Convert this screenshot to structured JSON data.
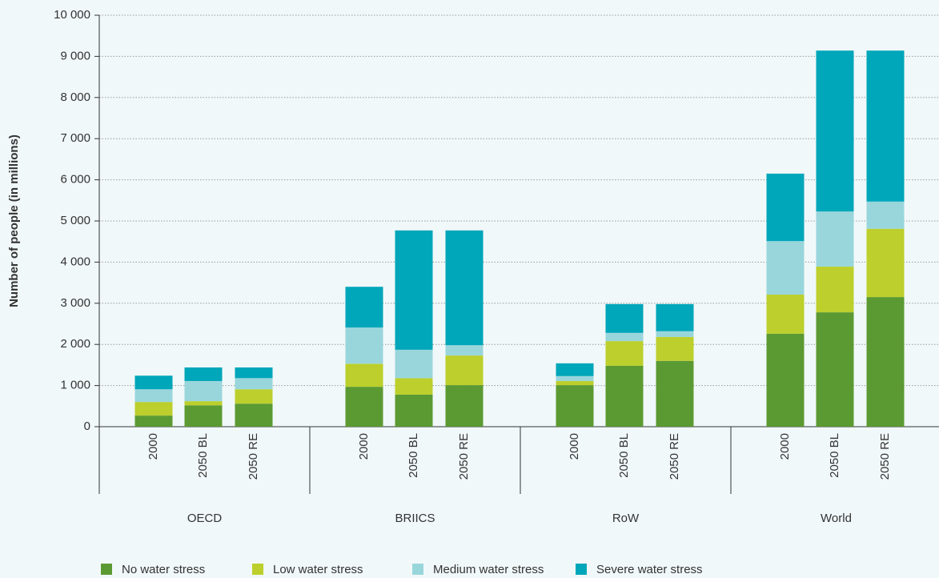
{
  "chart_data": {
    "type": "stacked-bar",
    "y_label": "Number of people (in millions)",
    "groups": [
      {
        "name": "OECD",
        "categories": [
          "2000",
          "2050 BL",
          "2050 RE"
        ]
      },
      {
        "name": "BRIICS",
        "categories": [
          "2000",
          "2050 BL",
          "2050 RE"
        ]
      },
      {
        "name": "RoW",
        "categories": [
          "2000",
          "2050 BL",
          "2050 RE"
        ]
      },
      {
        "name": "World",
        "categories": [
          "2000",
          "2050 BL",
          "2050 RE"
        ]
      }
    ],
    "series": [
      {
        "name": "No water stress",
        "color": "#5b9a32",
        "values": [
          270,
          520,
          560,
          970,
          780,
          1010,
          1010,
          1480,
          1600,
          2260,
          2780,
          3150
        ]
      },
      {
        "name": "Low water stress",
        "color": "#bccf2c",
        "values": [
          330,
          100,
          350,
          560,
          400,
          720,
          100,
          600,
          580,
          950,
          1110,
          1660
        ]
      },
      {
        "name": "Medium water stress",
        "color": "#99d6dc",
        "values": [
          310,
          490,
          270,
          880,
          690,
          250,
          120,
          200,
          140,
          1300,
          1340,
          660
        ]
      },
      {
        "name": "Severe water stress",
        "color": "#00a6b9",
        "values": [
          330,
          330,
          260,
          990,
          2900,
          2790,
          310,
          700,
          660,
          1640,
          3910,
          3670
        ]
      }
    ],
    "ylim": [
      0,
      10000
    ],
    "yticks": [
      0,
      {
        "value": 1000,
        "label": "1 000"
      },
      {
        "value": 2000,
        "label": "2 000"
      },
      {
        "value": 3000,
        "label": "3 000"
      },
      {
        "value": 4000,
        "label": "4 000"
      },
      {
        "value": 5000,
        "label": "5 000"
      },
      {
        "value": 6000,
        "label": "6 000"
      },
      {
        "value": 7000,
        "label": "7 000"
      },
      {
        "value": 8000,
        "label": "8 000"
      },
      {
        "value": 9000,
        "label": "9 000"
      },
      {
        "value": 10000,
        "label": "10 000"
      }
    ],
    "grid": true,
    "legend": "bottom"
  }
}
